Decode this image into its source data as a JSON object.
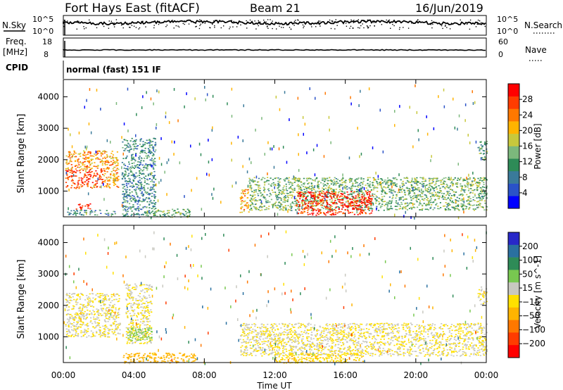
{
  "header": {
    "station": "Fort Hays East (fitACF)",
    "beam": "Beam 21",
    "date": "16/Jun/2019"
  },
  "aux_panels": {
    "nsky_label": "N.Sky",
    "nsky_ticks": [
      "10^5",
      "10^0"
    ],
    "nsearch_label": "N.Search",
    "freq_label": "Freq.",
    "freq_unit": "[MHz]",
    "freq_ticks": [
      "18",
      "8"
    ],
    "nave_label": "Nave",
    "nave_ticks": [
      "60",
      "0"
    ],
    "cpid_label": "CPID",
    "cpid_text": "normal (fast) 151 IF"
  },
  "axes": {
    "xlabel": "Time UT",
    "x_ticks": [
      "00:00",
      "04:00",
      "08:00",
      "12:00",
      "16:00",
      "20:00",
      "00:00"
    ],
    "ylabel": "Slant Range [km]",
    "y_ticks": [
      1000,
      2000,
      3000,
      4000
    ],
    "ylim": [
      180,
      4550
    ],
    "xlim_hours": [
      0,
      24
    ]
  },
  "power_scale": {
    "label": "Power [dB]",
    "ticks": [
      4,
      8,
      12,
      16,
      20,
      24,
      28
    ],
    "colors": [
      "#0000ff",
      "#2a52c8",
      "#3a7a9a",
      "#2e8b57",
      "#7cb87c",
      "#c8c83c",
      "#ffb400",
      "#ff7800",
      "#ff3c00",
      "#ff0000"
    ]
  },
  "velocity_scale": {
    "label": "Velocity [m s^-1]",
    "ticks": [
      "200",
      "100",
      "50",
      "15",
      "−15",
      "−50",
      "−100",
      "−200"
    ],
    "colors": [
      "#2828c8",
      "#2a70a0",
      "#2e8b57",
      "#78c850",
      "#c8c8c0",
      "#ffe000",
      "#ffb400",
      "#ff7800",
      "#ff3c00",
      "#ff0000"
    ]
  },
  "chart_data": [
    {
      "type": "heatmap",
      "title": "",
      "quantity": "Power [dB]",
      "xlabel": "Time UT",
      "ylabel": "Slant Range [km]",
      "ylim": [
        180,
        4550
      ],
      "clim": [
        0,
        32
      ],
      "regions": [
        {
          "t": [
            0.1,
            3.1
          ],
          "r": [
            1100,
            2300
          ],
          "power_db": 22,
          "note_peak": 30
        },
        {
          "t": [
            0.7,
            1.5
          ],
          "r": [
            430,
            610
          ],
          "power_db": 30
        },
        {
          "t": [
            0.2,
            3.0
          ],
          "r": [
            250,
            420
          ],
          "power_db": 10
        },
        {
          "t": [
            3.3,
            5.2
          ],
          "r": [
            180,
            2700
          ],
          "power_db": 10
        },
        {
          "t": [
            5.0,
            7.2
          ],
          "r": [
            180,
            450
          ],
          "power_db": 14
        },
        {
          "t": [
            10.0,
            10.5
          ],
          "r": [
            300,
            1100
          ],
          "power_db": 22
        },
        {
          "t": [
            10.5,
            24.0
          ],
          "r": [
            400,
            1450
          ],
          "power_db": 14
        },
        {
          "t": [
            13.2,
            17.5
          ],
          "r": [
            250,
            1000
          ],
          "power_db": 29
        },
        {
          "t": [
            23.5,
            24.0
          ],
          "r": [
            2000,
            2600
          ],
          "power_db": 12
        }
      ]
    },
    {
      "type": "heatmap",
      "title": "",
      "quantity": "Velocity [m s^-1]",
      "xlabel": "Time UT",
      "ylabel": "Slant Range [km]",
      "ylim": [
        180,
        4550
      ],
      "clim": [
        -200,
        200
      ],
      "regions": [
        {
          "t": [
            0.1,
            3.2
          ],
          "r": [
            1000,
            2400
          ],
          "velocity": 0
        },
        {
          "t": [
            3.5,
            5.0
          ],
          "r": [
            800,
            2700
          ],
          "velocity": 0
        },
        {
          "t": [
            3.6,
            5.0
          ],
          "r": [
            900,
            1300
          ],
          "velocity": 60
        },
        {
          "t": [
            3.3,
            7.5
          ],
          "r": [
            180,
            500
          ],
          "velocity": -60
        },
        {
          "t": [
            10.0,
            24.0
          ],
          "r": [
            400,
            1450
          ],
          "velocity": 0
        },
        {
          "t": [
            12.0,
            17.0
          ],
          "r": [
            180,
            500
          ],
          "velocity": -30
        },
        {
          "t": [
            23.5,
            24.0
          ],
          "r": [
            2000,
            2600
          ],
          "velocity": 0
        }
      ]
    }
  ]
}
